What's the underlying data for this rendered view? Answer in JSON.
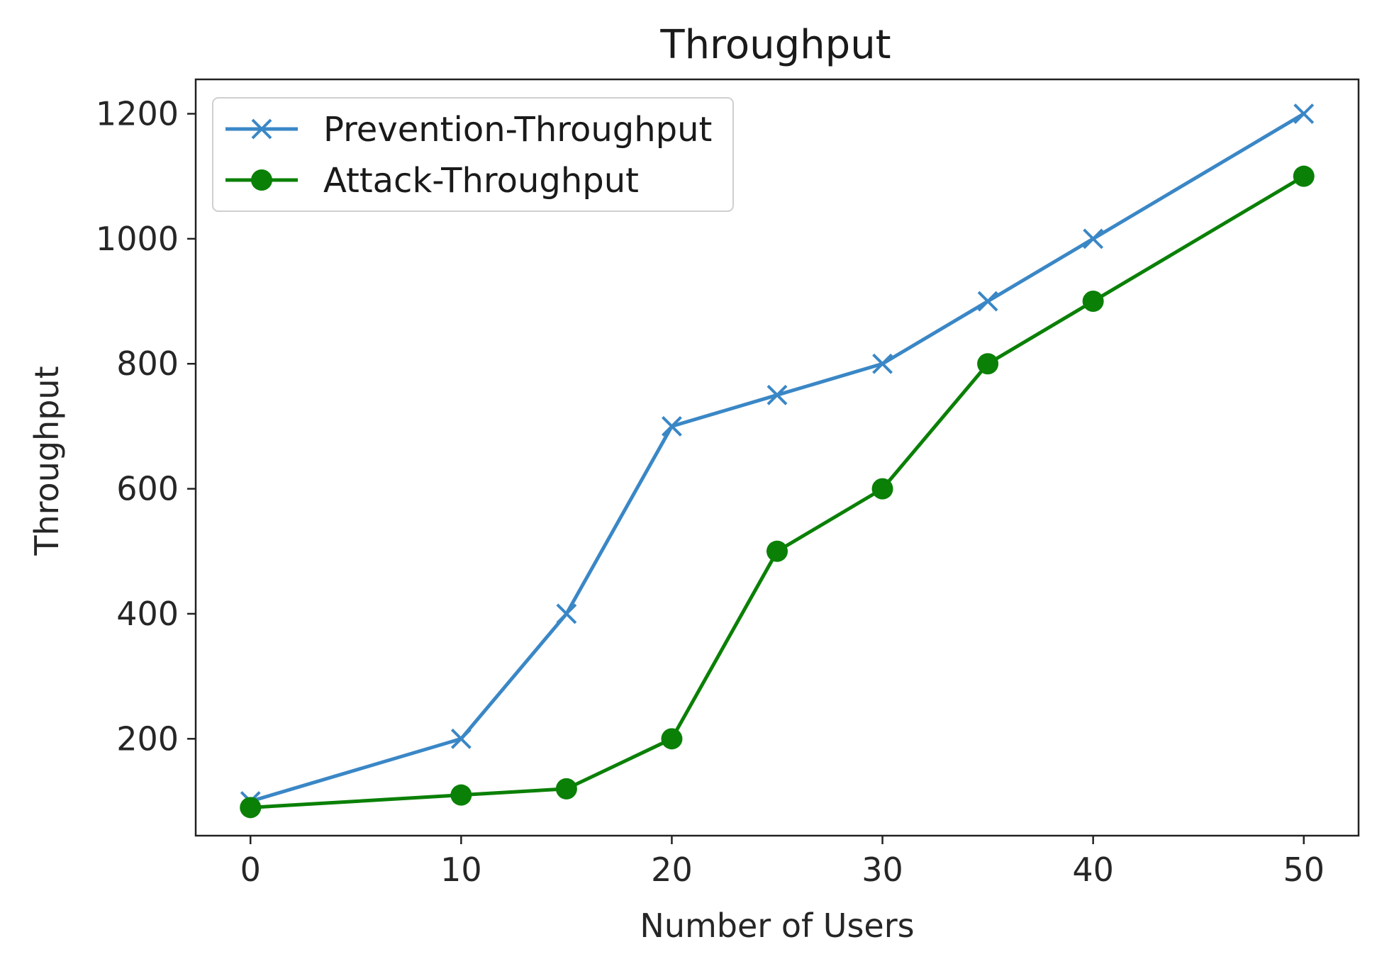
{
  "chart_data": {
    "type": "line",
    "title": "Throughput",
    "xlabel": "Number of Users",
    "ylabel": "Throughput",
    "x": [
      0,
      10,
      15,
      20,
      25,
      30,
      35,
      40,
      50
    ],
    "xticks": [
      0,
      10,
      20,
      30,
      40,
      50
    ],
    "yticks": [
      200,
      400,
      600,
      800,
      1000,
      1200
    ],
    "xlim": [
      -2.6,
      52.6
    ],
    "ylim": [
      45,
      1255
    ],
    "grid": false,
    "legend_position": "top-left",
    "series": [
      {
        "name": "Prevention-Throughput",
        "values": [
          100,
          200,
          400,
          700,
          750,
          800,
          900,
          1000,
          1200
        ],
        "color": "#3a87c6",
        "marker": "x"
      },
      {
        "name": "Attack-Throughput",
        "values": [
          90,
          110,
          120,
          200,
          500,
          600,
          800,
          900,
          1100
        ],
        "color": "#0a8006",
        "marker": "circle"
      }
    ]
  }
}
